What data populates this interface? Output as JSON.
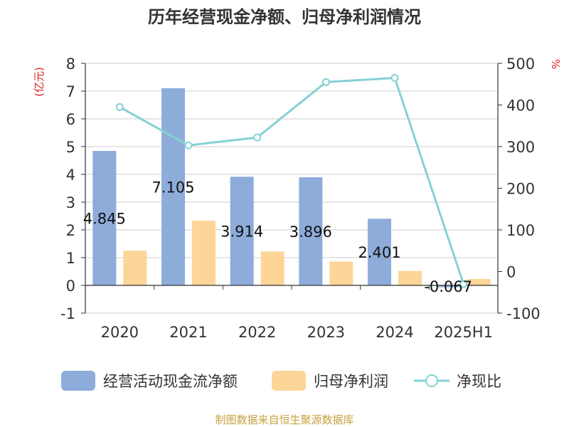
{
  "chart_data": {
    "type": "bar",
    "title": "历年经营现金净额、归母净利润情况",
    "y_left_label": "(亿元)",
    "y_right_label": "%",
    "categories": [
      "2020",
      "2021",
      "2022",
      "2023",
      "2024",
      "2025H1"
    ],
    "series": [
      {
        "name": "经营活动现金流净额",
        "type": "bar",
        "axis": "left",
        "values": [
          4.845,
          7.105,
          3.914,
          3.896,
          2.401,
          -0.067
        ],
        "labels": [
          "4.845",
          "7.105",
          "3.914",
          "3.896",
          "2.401",
          "-0.067"
        ]
      },
      {
        "name": "归母净利润",
        "type": "bar",
        "axis": "left",
        "values": [
          1.25,
          2.33,
          1.22,
          0.86,
          0.52,
          0.23
        ]
      },
      {
        "name": "净现比",
        "type": "line",
        "axis": "right",
        "values": [
          395,
          303,
          322,
          455,
          465,
          -30
        ]
      }
    ],
    "ylim_left": [
      -1,
      8
    ],
    "yticks_left": [
      "-1",
      "0",
      "1",
      "2",
      "3",
      "4",
      "5",
      "6",
      "7",
      "8"
    ],
    "ylim_right": [
      -100,
      500
    ],
    "yticks_right": [
      "-100",
      "0",
      "100",
      "200",
      "300",
      "400",
      "500"
    ],
    "grid": true,
    "legend_position": "bottom",
    "colors": {
      "bar1": "#8eacda",
      "bar2": "#fdd598",
      "line": "#85d1d4",
      "axis_label": "#e02020",
      "source": "#c8a040",
      "grid": "#cccccc",
      "title": "#333333"
    }
  },
  "source": "制图数据来自恒生聚源数据库"
}
